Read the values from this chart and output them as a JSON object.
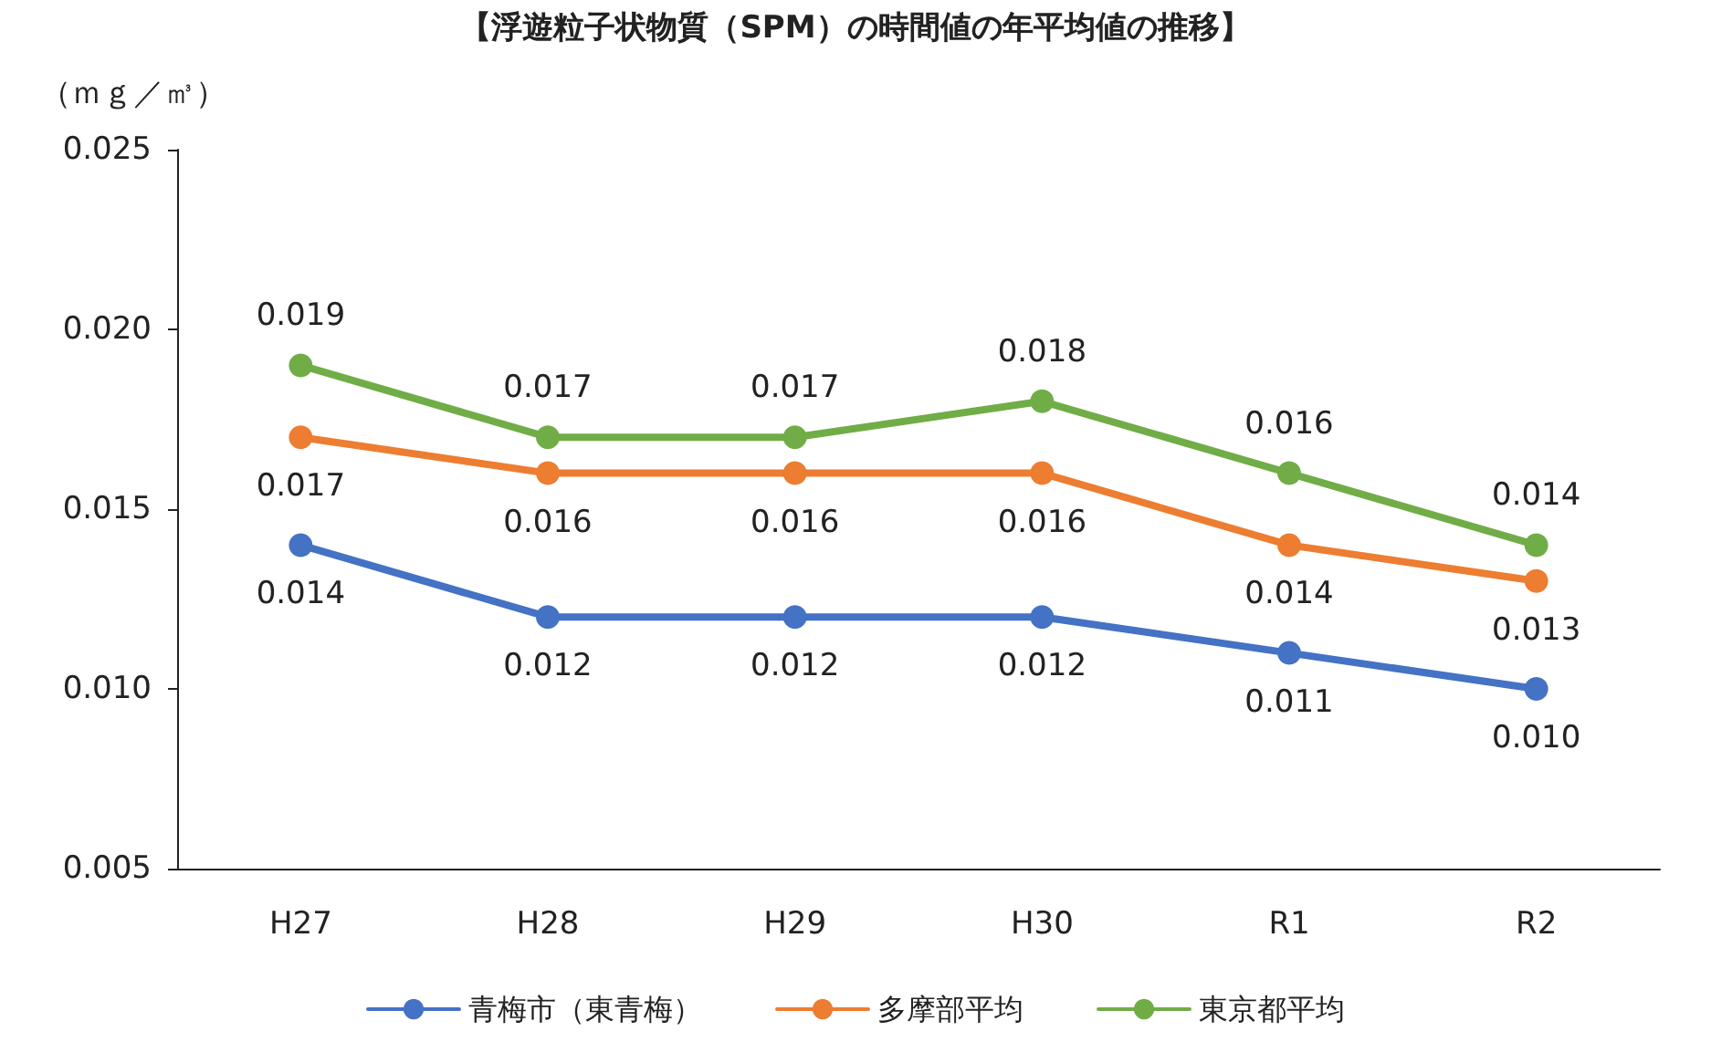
{
  "chart_data": {
    "type": "line",
    "title": "【浮遊粒子状物質（SPM）の時間値の年平均値の推移】",
    "ylabel": "（ｍｇ／㎥）",
    "categories": [
      "H27",
      "H28",
      "H29",
      "H30",
      "R1",
      "R2"
    ],
    "series": [
      {
        "name": "青梅市（東青梅）",
        "color": "#4472c4",
        "values": [
          0.014,
          0.012,
          0.012,
          0.012,
          0.011,
          0.01
        ],
        "value_labels": [
          "0.014",
          "0.012",
          "0.012",
          "0.012",
          "0.011",
          "0.010"
        ]
      },
      {
        "name": "多摩部平均",
        "color": "#ed7d31",
        "values": [
          0.017,
          0.016,
          0.016,
          0.016,
          0.014,
          0.013
        ],
        "value_labels": [
          "0.017",
          "0.016",
          "0.016",
          "0.016",
          "0.014",
          "0.013"
        ]
      },
      {
        "name": "東京都平均",
        "color": "#70ad47",
        "values": [
          0.019,
          0.017,
          0.017,
          0.018,
          0.016,
          0.014
        ],
        "value_labels": [
          "0.019",
          "0.017",
          "0.017",
          "0.018",
          "0.016",
          "0.014"
        ]
      }
    ],
    "ylim": [
      0.005,
      0.025
    ],
    "yticks": [
      {
        "value": 0.005,
        "label": "0.005"
      },
      {
        "value": 0.01,
        "label": "0.010"
      },
      {
        "value": 0.015,
        "label": "0.015"
      },
      {
        "value": 0.02,
        "label": "0.020"
      },
      {
        "value": 0.025,
        "label": "0.025"
      }
    ],
    "grid": false,
    "legend": "bottom",
    "marker": "circle",
    "line_style": "solid"
  }
}
